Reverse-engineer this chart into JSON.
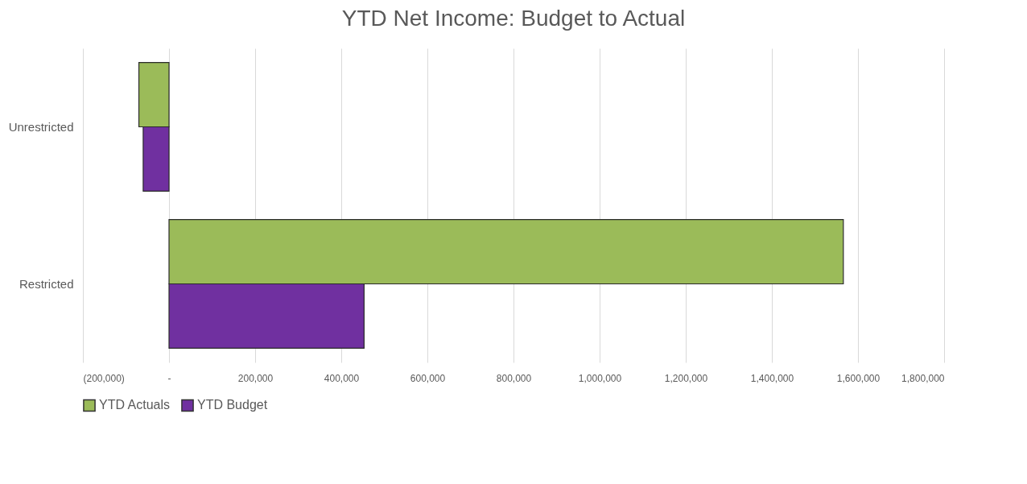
{
  "chart_data": {
    "type": "bar",
    "orientation": "horizontal",
    "title": "YTD Net Income:  Budget to Actual",
    "categories": [
      "Unrestricted",
      "Restricted"
    ],
    "series": [
      {
        "name": "YTD Actuals",
        "color": "#9bbb59",
        "values": [
          -70000,
          1566000
        ]
      },
      {
        "name": "YTD Budget",
        "color": "#7030a0",
        "values": [
          -60000,
          453000
        ]
      }
    ],
    "xlim": [
      -200000,
      1800000
    ],
    "xticks": [
      {
        "value": -200000,
        "label": "(200,000)"
      },
      {
        "value": 0,
        "label": "-"
      },
      {
        "value": 200000,
        "label": "200,000"
      },
      {
        "value": 400000,
        "label": "400,000"
      },
      {
        "value": 600000,
        "label": "600,000"
      },
      {
        "value": 800000,
        "label": "800,000"
      },
      {
        "value": 1000000,
        "label": "1,000,000"
      },
      {
        "value": 1200000,
        "label": "1,200,000"
      },
      {
        "value": 1400000,
        "label": "1,400,000"
      },
      {
        "value": 1600000,
        "label": "1,600,000"
      },
      {
        "value": 1800000,
        "label": "1,800,000"
      }
    ],
    "grid": "x",
    "legend": "bottom"
  }
}
